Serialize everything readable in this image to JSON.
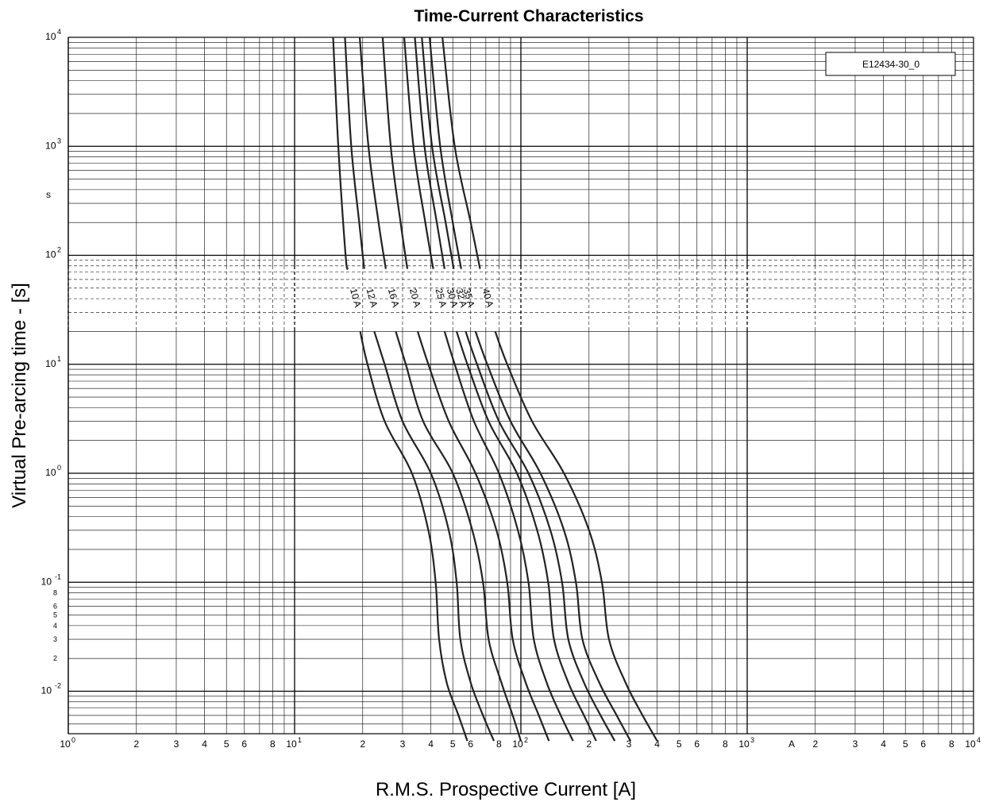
{
  "chart_data": {
    "type": "line",
    "title": "Time-Current Characteristics",
    "xlabel": "R.M.S. Prospective Current [A]",
    "ylabel": "Virtual Pre-arcing time - [s]",
    "xscale": "log",
    "yscale": "log",
    "xlim": [
      1,
      10000
    ],
    "ylim": [
      0.0035,
      10000
    ],
    "grid": true,
    "reference_label": "E12434-30_0",
    "x_unit_marker": "A",
    "y_unit_marker": "s",
    "x_ticks": [
      {
        "v": 1,
        "base": "10",
        "exp": "0"
      },
      {
        "v": 2,
        "t": "2"
      },
      {
        "v": 3,
        "t": "3"
      },
      {
        "v": 4,
        "t": "4"
      },
      {
        "v": 5,
        "t": "5"
      },
      {
        "v": 6,
        "t": "6"
      },
      {
        "v": 8,
        "t": "8"
      },
      {
        "v": 10,
        "base": "10",
        "exp": "1"
      },
      {
        "v": 20,
        "t": "2"
      },
      {
        "v": 30,
        "t": "3"
      },
      {
        "v": 40,
        "t": "4"
      },
      {
        "v": 50,
        "t": "5"
      },
      {
        "v": 60,
        "t": "6"
      },
      {
        "v": 80,
        "t": "8"
      },
      {
        "v": 100,
        "base": "10",
        "exp": "2"
      },
      {
        "v": 200,
        "t": "2"
      },
      {
        "v": 300,
        "t": "3"
      },
      {
        "v": 400,
        "t": "4"
      },
      {
        "v": 500,
        "t": "5"
      },
      {
        "v": 600,
        "t": "6"
      },
      {
        "v": 800,
        "t": "8"
      },
      {
        "v": 1000,
        "base": "10",
        "exp": "3"
      },
      {
        "v": 2000,
        "t": "2"
      },
      {
        "v": 3000,
        "t": "3"
      },
      {
        "v": 4000,
        "t": "4"
      },
      {
        "v": 5000,
        "t": "5"
      },
      {
        "v": 6000,
        "t": "6"
      },
      {
        "v": 8000,
        "t": "8"
      },
      {
        "v": 10000,
        "base": "10",
        "exp": "4"
      }
    ],
    "y_ticks": [
      {
        "v": 10000,
        "base": "10",
        "exp": "4"
      },
      {
        "v": 1000,
        "base": "10",
        "exp": "3"
      },
      {
        "v": 100,
        "base": "10",
        "exp": "2"
      },
      {
        "v": 10,
        "base": "10",
        "exp": "1"
      },
      {
        "v": 1,
        "base": "10",
        "exp": "0"
      },
      {
        "v": 0.1,
        "base": "10",
        "exp": "-1"
      },
      {
        "v": 0.08,
        "t": "8"
      },
      {
        "v": 0.06,
        "t": "6"
      },
      {
        "v": 0.05,
        "t": "5"
      },
      {
        "v": 0.04,
        "t": "4"
      },
      {
        "v": 0.03,
        "t": "3"
      },
      {
        "v": 0.02,
        "t": "2"
      },
      {
        "v": 0.01,
        "base": "10",
        "exp": "-2"
      }
    ],
    "series": [
      {
        "name": "10 A",
        "upper": [
          [
            14.8,
            10000
          ],
          [
            15.6,
            1000
          ],
          [
            16.8,
            100
          ],
          [
            17.2,
            75
          ]
        ],
        "lower": [
          [
            19.5,
            20
          ],
          [
            21,
            10
          ],
          [
            25,
            3
          ],
          [
            33,
            1
          ],
          [
            39,
            0.3
          ],
          [
            42,
            0.1
          ],
          [
            43.5,
            0.03
          ],
          [
            47,
            0.012
          ],
          [
            53,
            0.006
          ],
          [
            58,
            0.0035
          ]
        ]
      },
      {
        "name": "12 A",
        "upper": [
          [
            16.7,
            10000
          ],
          [
            17.8,
            1000
          ],
          [
            19.3,
            200
          ],
          [
            20.3,
            75
          ]
        ],
        "lower": [
          [
            22.5,
            20
          ],
          [
            25,
            10
          ],
          [
            30,
            3
          ],
          [
            40,
            1
          ],
          [
            48,
            0.3
          ],
          [
            52,
            0.1
          ],
          [
            54,
            0.03
          ],
          [
            60,
            0.012
          ],
          [
            68,
            0.006
          ],
          [
            76,
            0.0035
          ]
        ]
      },
      {
        "name": "16 A",
        "upper": [
          [
            19.4,
            10000
          ],
          [
            21.2,
            1000
          ],
          [
            23.5,
            200
          ],
          [
            25.3,
            75
          ]
        ],
        "lower": [
          [
            28,
            20
          ],
          [
            31,
            10
          ],
          [
            37,
            3
          ],
          [
            50,
            1
          ],
          [
            61,
            0.3
          ],
          [
            68,
            0.1
          ],
          [
            72,
            0.03
          ],
          [
            82,
            0.012
          ],
          [
            92,
            0.006
          ],
          [
            100,
            0.0035
          ]
        ]
      },
      {
        "name": "20 A",
        "upper": [
          [
            24.5,
            10000
          ],
          [
            26.6,
            1000
          ],
          [
            29.4,
            200
          ],
          [
            31.5,
            75
          ]
        ],
        "lower": [
          [
            35,
            20
          ],
          [
            39,
            10
          ],
          [
            48,
            3
          ],
          [
            63,
            1
          ],
          [
            78,
            0.3
          ],
          [
            87,
            0.1
          ],
          [
            92,
            0.03
          ],
          [
            105,
            0.012
          ],
          [
            120,
            0.006
          ],
          [
            133,
            0.0035
          ]
        ]
      },
      {
        "name": "25 A",
        "upper": [
          [
            30.5,
            10000
          ],
          [
            33.5,
            1000
          ],
          [
            37.8,
            200
          ],
          [
            41,
            75
          ]
        ],
        "lower": [
          [
            46,
            20
          ],
          [
            51,
            10
          ],
          [
            62,
            3
          ],
          [
            80,
            1
          ],
          [
            97,
            0.3
          ],
          [
            108,
            0.1
          ],
          [
            114,
            0.03
          ],
          [
            130,
            0.012
          ],
          [
            150,
            0.006
          ],
          [
            170,
            0.0035
          ]
        ]
      },
      {
        "name": "30 A",
        "upper": [
          [
            34,
            10000
          ],
          [
            37.5,
            1000
          ],
          [
            42.5,
            200
          ],
          [
            46,
            75
          ]
        ],
        "lower": [
          [
            52,
            20
          ],
          [
            58,
            10
          ],
          [
            72,
            3
          ],
          [
            96,
            1
          ],
          [
            118,
            0.3
          ],
          [
            132,
            0.1
          ],
          [
            140,
            0.03
          ],
          [
            162,
            0.012
          ],
          [
            190,
            0.006
          ],
          [
            215,
            0.0035
          ]
        ]
      },
      {
        "name": "32 A",
        "upper": [
          [
            36.5,
            10000
          ],
          [
            40.5,
            1000
          ],
          [
            46.5,
            200
          ],
          [
            50.5,
            75
          ]
        ],
        "lower": [
          [
            57,
            20
          ],
          [
            64,
            10
          ],
          [
            80,
            3
          ],
          [
            108,
            1
          ],
          [
            135,
            0.3
          ],
          [
            152,
            0.1
          ],
          [
            162,
            0.03
          ],
          [
            190,
            0.012
          ],
          [
            225,
            0.006
          ],
          [
            260,
            0.0035
          ]
        ]
      },
      {
        "name": "35 A",
        "upper": [
          [
            39.5,
            10000
          ],
          [
            44,
            1000
          ],
          [
            50,
            200
          ],
          [
            54.5,
            75
          ]
        ],
        "lower": [
          [
            63,
            20
          ],
          [
            71,
            10
          ],
          [
            90,
            3
          ],
          [
            122,
            1
          ],
          [
            155,
            0.3
          ],
          [
            175,
            0.1
          ],
          [
            187,
            0.03
          ],
          [
            222,
            0.012
          ],
          [
            265,
            0.006
          ],
          [
            305,
            0.0035
          ]
        ]
      },
      {
        "name": "40 A",
        "upper": [
          [
            45,
            10000
          ],
          [
            51,
            1000
          ],
          [
            60,
            200
          ],
          [
            66,
            75
          ]
        ],
        "lower": [
          [
            77,
            20
          ],
          [
            87,
            10
          ],
          [
            112,
            3
          ],
          [
            155,
            1
          ],
          [
            200,
            0.3
          ],
          [
            228,
            0.1
          ],
          [
            245,
            0.03
          ],
          [
            290,
            0.012
          ],
          [
            345,
            0.006
          ],
          [
            400,
            0.0035
          ]
        ]
      }
    ]
  }
}
